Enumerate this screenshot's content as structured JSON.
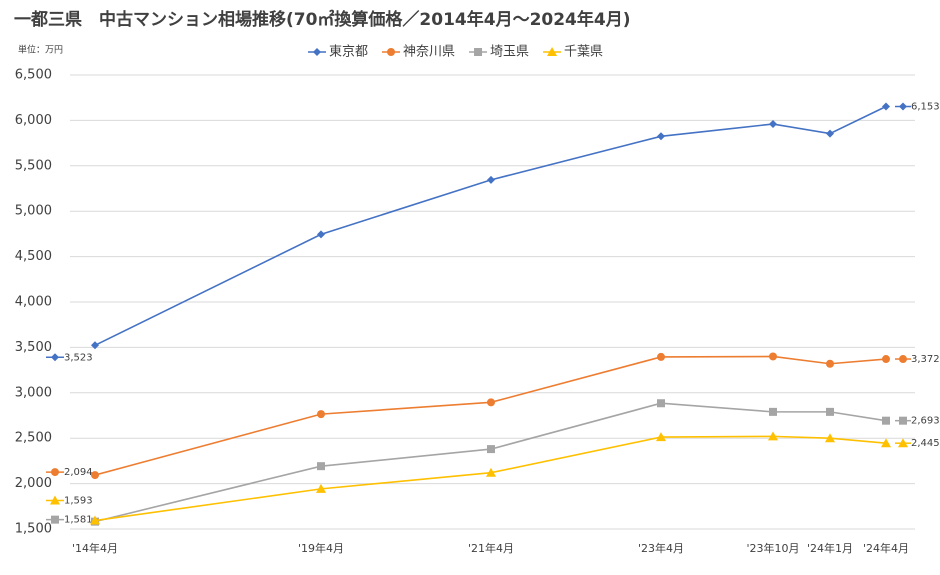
{
  "chart_data": {
    "type": "line",
    "title": "一都三県　中古マンション相場推移(70㎡換算価格／2014年4月～2024年4月)",
    "unit_label": "単位：万円",
    "categories": [
      "'14年4月",
      "'19年4月",
      "'21年4月",
      "'23年4月",
      "'23年10月",
      "'24年1月",
      "'24年4月"
    ],
    "series": [
      {
        "name": "東京都",
        "color": "#4472c4",
        "marker": "diamond",
        "values": [
          3523,
          4745,
          5345,
          5825,
          5960,
          5855,
          6153
        ],
        "value_labels": [
          "3,523",
          null,
          null,
          null,
          null,
          null,
          "6,153"
        ]
      },
      {
        "name": "神奈川県",
        "color": "#ed7d31",
        "marker": "circle",
        "values": [
          2094,
          2765,
          2895,
          3395,
          3400,
          3320,
          3372
        ],
        "value_labels": [
          "2,094",
          null,
          null,
          null,
          null,
          null,
          "3,372"
        ]
      },
      {
        "name": "埼玉県",
        "color": "#a5a5a5",
        "marker": "square",
        "values": [
          1581,
          2192,
          2380,
          2885,
          2790,
          2790,
          2693
        ],
        "value_labels": [
          "1,581",
          null,
          null,
          null,
          null,
          null,
          "2,693"
        ]
      },
      {
        "name": "千葉県",
        "color": "#ffc000",
        "marker": "triangle",
        "values": [
          1593,
          1942,
          2120,
          2512,
          2520,
          2500,
          2445
        ],
        "value_labels": [
          "1,593",
          null,
          null,
          null,
          null,
          null,
          "2,445"
        ]
      }
    ],
    "ylim": [
      1500,
      6500
    ],
    "yticks": [
      {
        "value": 1500,
        "label": "1,500"
      },
      {
        "value": 2000,
        "label": "2,000"
      },
      {
        "value": 2500,
        "label": "2,500"
      },
      {
        "value": 3000,
        "label": "3,000"
      },
      {
        "value": 3500,
        "label": "3,500"
      },
      {
        "value": 4000,
        "label": "4,000"
      },
      {
        "value": 4500,
        "label": "4,500"
      },
      {
        "value": 5000,
        "label": "5,000"
      },
      {
        "value": 5500,
        "label": "5,500"
      },
      {
        "value": 6000,
        "label": "6,000"
      },
      {
        "value": 6500,
        "label": "6,500"
      }
    ],
    "grid": true,
    "legend": "top"
  }
}
